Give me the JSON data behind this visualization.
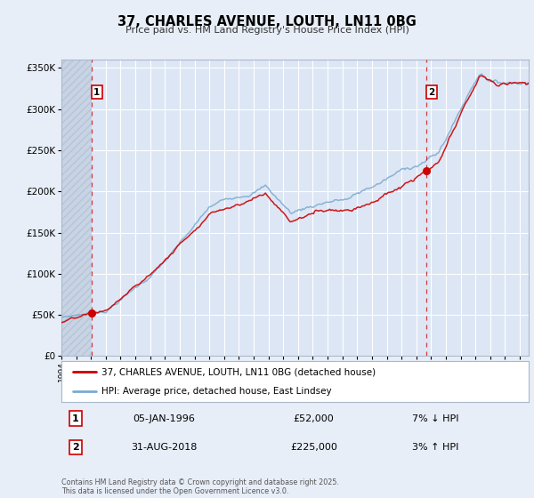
{
  "title": "37, CHARLES AVENUE, LOUTH, LN11 0BG",
  "subtitle": "Price paid vs. HM Land Registry's House Price Index (HPI)",
  "bg_color": "#e8eef8",
  "plot_bg_color": "#dde6f4",
  "hatch_color": "#c8d4e4",
  "grid_color": "#ffffff",
  "red_line_color": "#cc0000",
  "blue_line_color": "#7aaad0",
  "ylim": [
    0,
    360000
  ],
  "yticks": [
    0,
    50000,
    100000,
    150000,
    200000,
    250000,
    300000,
    350000
  ],
  "xlim_start": 1994.0,
  "xlim_end": 2025.6,
  "sale1_x": 1996.03,
  "sale1_y": 52000,
  "sale1_label": "1",
  "sale1_info": "05-JAN-1996",
  "sale1_price": "£52,000",
  "sale1_hpi": "7% ↓ HPI",
  "sale2_x": 2018.67,
  "sale2_y": 225000,
  "sale2_label": "2",
  "sale2_info": "31-AUG-2018",
  "sale2_price": "£225,000",
  "sale2_hpi": "3% ↑ HPI",
  "legend_red": "37, CHARLES AVENUE, LOUTH, LN11 0BG (detached house)",
  "legend_blue": "HPI: Average price, detached house, East Lindsey",
  "footnote": "Contains HM Land Registry data © Crown copyright and database right 2025.\nThis data is licensed under the Open Government Licence v3.0."
}
